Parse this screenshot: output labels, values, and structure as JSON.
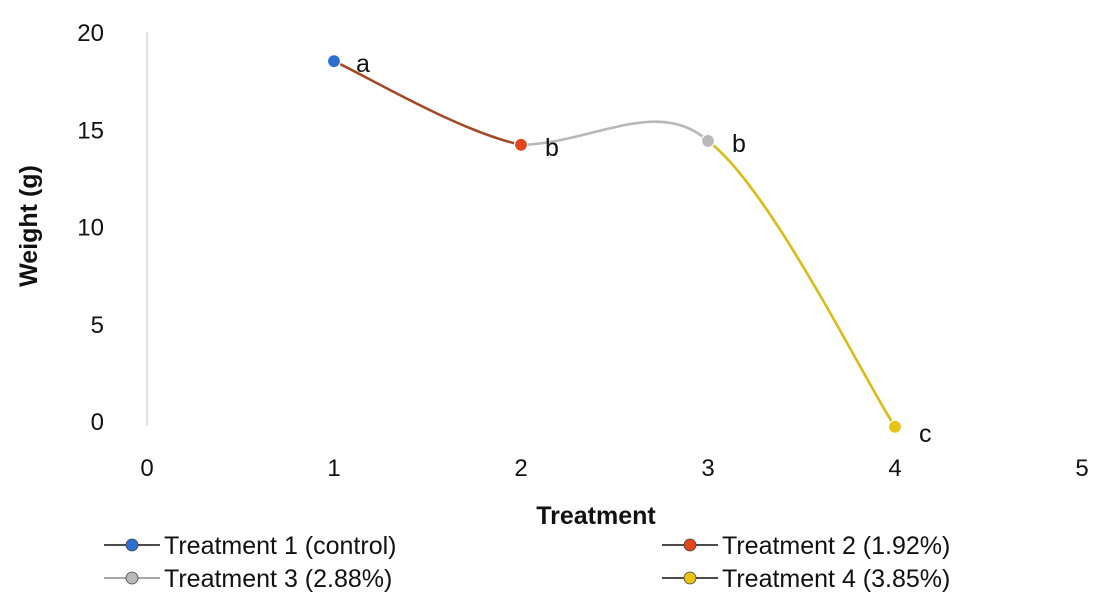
{
  "chart_data": {
    "type": "line",
    "xlabel": "Treatment",
    "ylabel": "Weight (g)",
    "xlim": [
      0,
      5
    ],
    "ylim": [
      0,
      20
    ],
    "x_ticks": [
      "0",
      "1",
      "2",
      "3",
      "4",
      "5"
    ],
    "y_ticks": [
      "0",
      "5",
      "10",
      "15",
      "20"
    ],
    "grid": false,
    "legend_position": "bottom",
    "points": [
      {
        "x": 1,
        "y": 18.5,
        "label": "a"
      },
      {
        "x": 2,
        "y": 14.2,
        "label": "b"
      },
      {
        "x": 3,
        "y": 14.4,
        "label": "b"
      },
      {
        "x": 4,
        "y": -0.3,
        "label": "c"
      }
    ],
    "series": [
      {
        "name": "Treatment 1 (control)",
        "color": "#2f6fcf"
      },
      {
        "name": "Treatment 2 (1.92%)",
        "color": "#e2461c"
      },
      {
        "name": "Treatment 3 (2.88%)",
        "color": "#b8b8b8"
      },
      {
        "name": "Treatment 4 (3.85%)",
        "color": "#e8c417"
      }
    ],
    "segment_colors": [
      "#a24a28",
      "#b8b8b8",
      "#d9bc16"
    ]
  }
}
